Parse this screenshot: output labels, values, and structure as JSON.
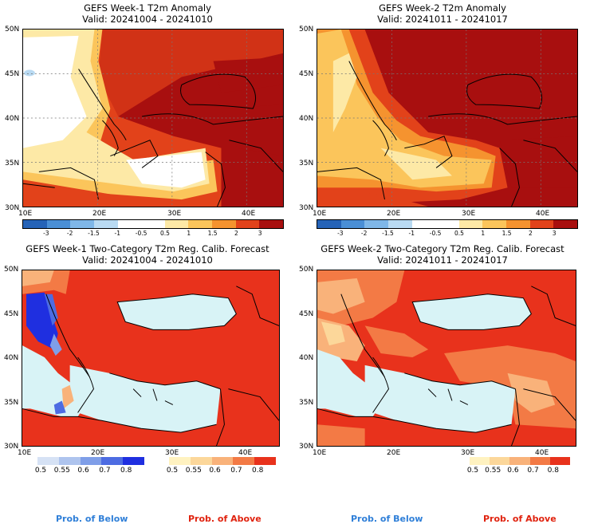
{
  "panels": [
    {
      "title": "GEFS Week-1 T2m Anomaly",
      "valid": "Valid: 20241004 - 20241010"
    },
    {
      "title": "GEFS Week-2 T2m Anomaly",
      "valid": "Valid: 20241011 - 20241017"
    },
    {
      "title": "GEFS Week-1 Two-Category T2m Reg. Calib. Forecast",
      "valid": "Valid: 20241004 - 20241010"
    },
    {
      "title": "GEFS Week-2 Two-Category T2m Reg. Calib. Forecast",
      "valid": "Valid: 20241011 - 20241017"
    }
  ],
  "lat_labels": [
    "50N",
    "45N",
    "40N",
    "35N",
    "30N"
  ],
  "lon_labels": [
    "10E",
    "20E",
    "30E",
    "40E"
  ],
  "anomaly_colorbar": {
    "ticks": [
      "-3",
      "-2",
      "-1.5",
      "-1",
      "-0.5",
      "0.5",
      "1",
      "1.5",
      "2",
      "3"
    ],
    "colors": [
      "#2563b8",
      "#4a8fd6",
      "#7fb7e8",
      "#b9daf2",
      "#ffffff",
      "#ffffff",
      "#fde9a6",
      "#fbc55b",
      "#f5932f",
      "#e2421a",
      "#a80f0f"
    ]
  },
  "prob_below": {
    "ticks": [
      "0.5",
      "0.55",
      "0.6",
      "0.7",
      "0.8"
    ],
    "colors": [
      "#d6e2f5",
      "#aec4ee",
      "#7f9ee8",
      "#4d6ce2",
      "#1f2fe0"
    ],
    "label": "Prob. of Below"
  },
  "prob_above": {
    "ticks": [
      "0.5",
      "0.55",
      "0.6",
      "0.7",
      "0.8"
    ],
    "colors": [
      "#fff2c0",
      "#fcd79a",
      "#f9b27a",
      "#f37a45",
      "#e8321c"
    ],
    "label": "Prob. of Above"
  },
  "colors": {
    "sea": "#d8f3f6",
    "high": "#a80f0f",
    "above": "#e8321c"
  }
}
